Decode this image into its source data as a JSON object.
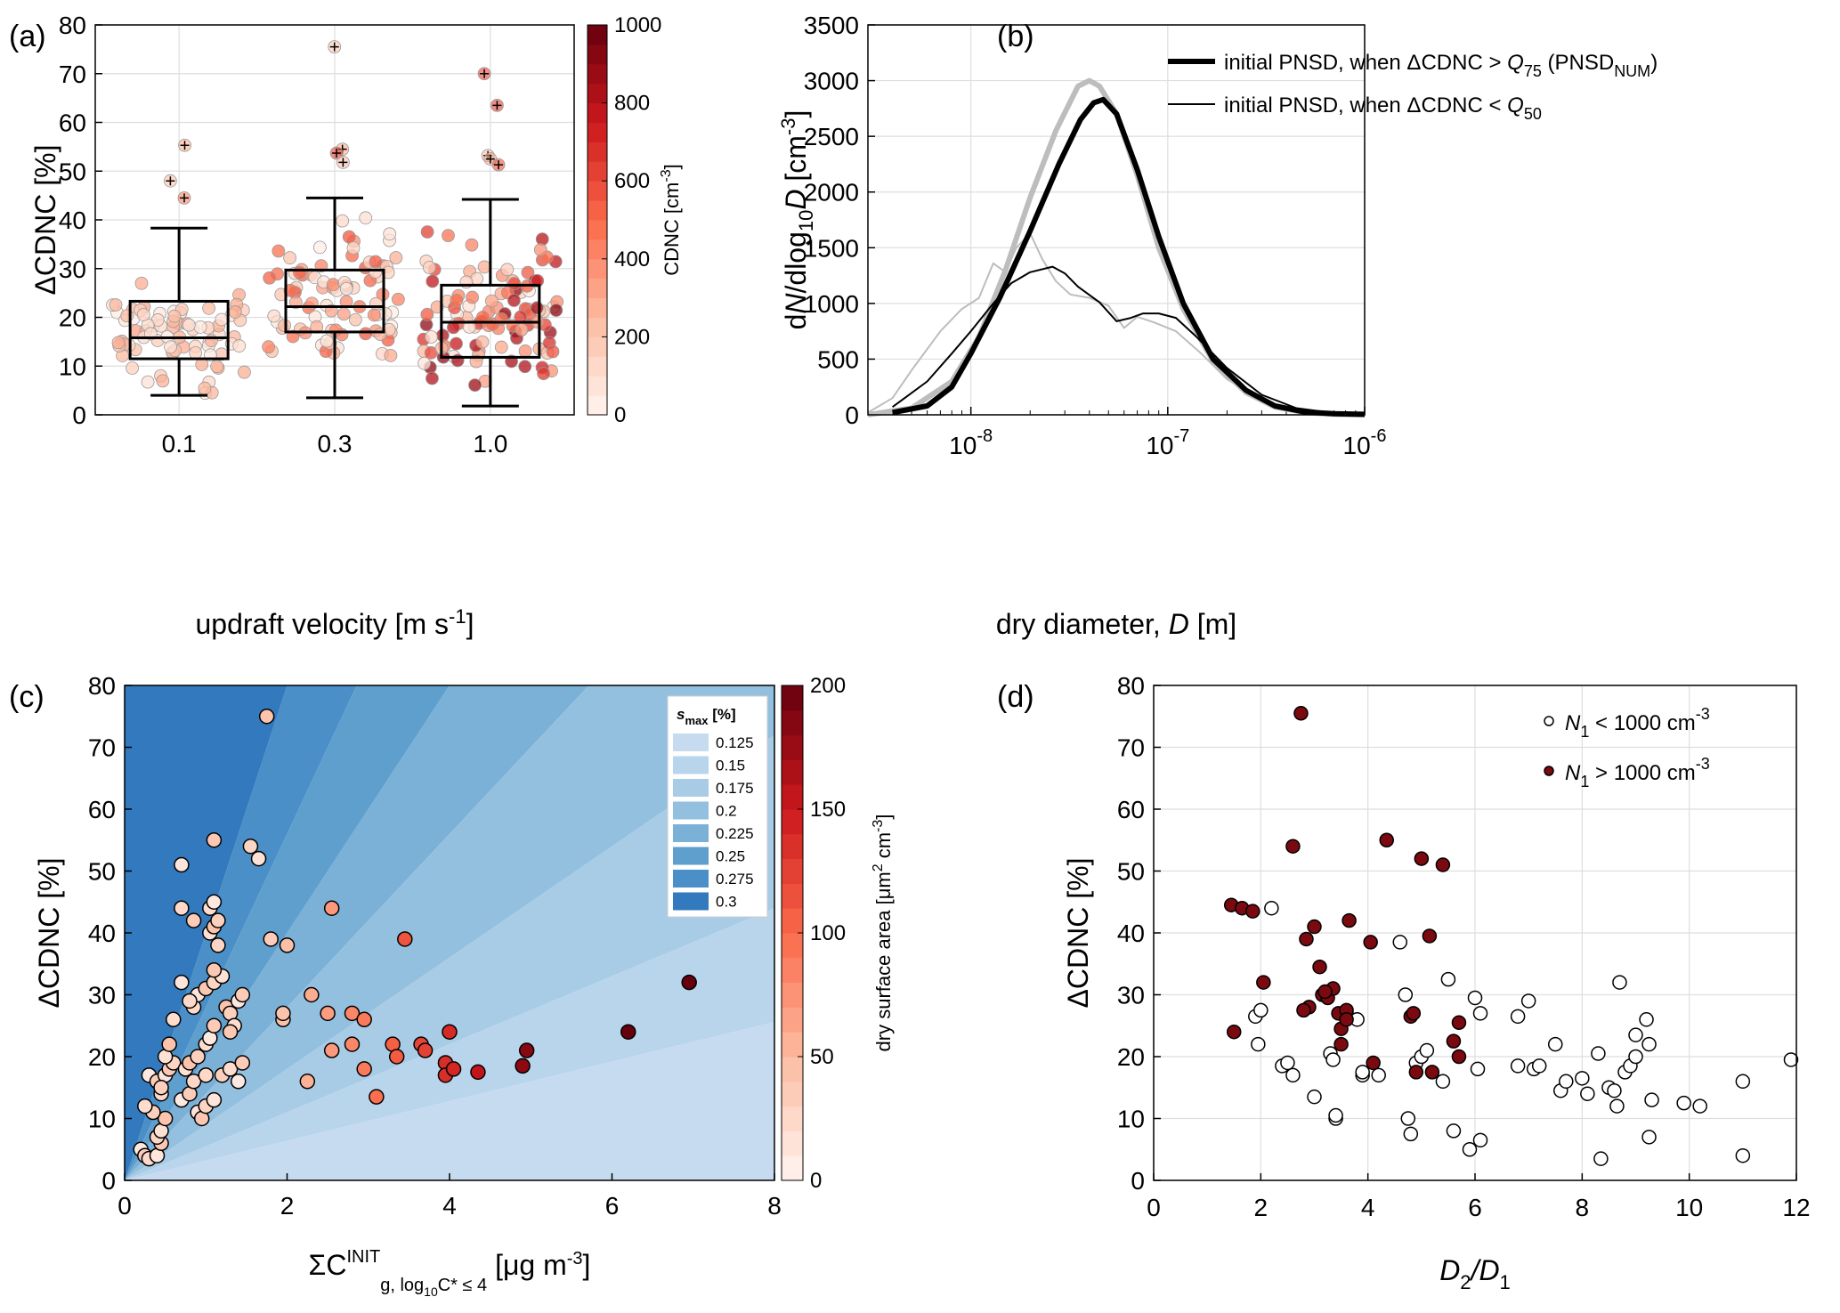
{
  "chart_data": [
    {
      "panel": "(a)",
      "type": "scatter",
      "title": "",
      "xlabel": "updraft velocity [m s",
      "xlabel_sup": "-1",
      "xlabel_tail": "]",
      "ylabel": "ΔCDNC [%]",
      "ylim": [
        0,
        80
      ],
      "yticks": [
        "0",
        "10",
        "20",
        "30",
        "40",
        "50",
        "60",
        "70",
        "80"
      ],
      "categories": [
        "0.1",
        "0.3",
        "1.0"
      ],
      "boxplots": [
        {
          "q1": 11.5,
          "median": 15.8,
          "q3": 23.3,
          "whislo": 4,
          "whishi": 38.3,
          "fliers": [
            55.3,
            48,
            44.5
          ]
        },
        {
          "q1": 17,
          "median": 22.2,
          "q3": 29.7,
          "whislo": 3.5,
          "whishi": 44.5,
          "fliers": [
            75.5,
            54.5,
            53.7,
            51.8
          ]
        },
        {
          "q1": 11.8,
          "median": 19,
          "q3": 26.6,
          "whislo": 1.8,
          "whishi": 44.2,
          "fliers": [
            70,
            63.5,
            53.2,
            52.5,
            51.3
          ]
        }
      ],
      "colorbar": {
        "label": "CDNC [cm",
        "label_sup": "-3",
        "label_tail": "]",
        "min": 0,
        "max": 1000,
        "ticks": [
          "0",
          "200",
          "400",
          "600",
          "800",
          "1000"
        ]
      }
    },
    {
      "panel": "(b)",
      "type": "line",
      "xlabel": "dry diameter, D [m]",
      "ylabel": "dN/dlog10D [cm-3]",
      "xscale": "log",
      "xlim": [
        3e-09,
        1e-06
      ],
      "ylim": [
        0,
        3500
      ],
      "yticks": [
        "0",
        "500",
        "1000",
        "1500",
        "2000",
        "2500",
        "3000",
        "3500"
      ],
      "xticks": [
        "10",
        "10",
        "10"
      ],
      "xtick_exps": [
        "-8",
        "-7",
        "-6"
      ],
      "legend": {
        "thick_a": "initial PNSD, when ΔCDNC > ",
        "thick_q": "Q",
        "thick_qsub": "75",
        "thick_b": " (PNSD",
        "thick_sub": "NUM",
        "thick_c": ")",
        "thin_a": "initial PNSD, when ΔCDNC < ",
        "thin_q": "Q",
        "thin_qsub": "50"
      },
      "series": [
        {
          "name": "initial PNSD, when ΔCDNC > Q75 (PNSD_NUM)",
          "style": "thick-black",
          "x": [
            4e-09,
            6e-09,
            8e-09,
            1e-08,
            1.4e-08,
            2e-08,
            2.8e-08,
            3.6e-08,
            4.2e-08,
            4.7e-08,
            5.5e-08,
            7e-08,
            9e-08,
            1.2e-07,
            1.7e-07,
            2.5e-07,
            3.5e-07,
            5e-07,
            7e-07,
            1e-06
          ],
          "y": [
            20,
            80,
            250,
            550,
            1050,
            1650,
            2250,
            2650,
            2800,
            2830,
            2700,
            2200,
            1600,
            1000,
            500,
            220,
            80,
            25,
            10,
            5
          ]
        },
        {
          "name": "initial PNSD, when ΔCDNC < Q50",
          "style": "thin-black",
          "x": [
            4e-09,
            6e-09,
            8e-09,
            1e-08,
            1.3e-08,
            1.6e-08,
            2e-08,
            2.6e-08,
            3e-08,
            3.5e-08,
            4.5e-08,
            5.5e-08,
            6.5e-08,
            7.5e-08,
            9e-08,
            1.1e-07,
            1.4e-07,
            2e-07,
            3e-07,
            4.5e-07,
            7e-07,
            1e-06
          ],
          "y": [
            70,
            300,
            550,
            750,
            1000,
            1180,
            1280,
            1330,
            1270,
            1150,
            1010,
            840,
            870,
            910,
            910,
            870,
            700,
            420,
            180,
            60,
            15,
            5
          ]
        },
        {
          "name": "thick grey",
          "style": "thick-grey",
          "x": [
            3e-09,
            5e-09,
            8e-09,
            1.1e-08,
            1.5e-08,
            2e-08,
            2.7e-08,
            3.5e-08,
            4e-08,
            4.5e-08,
            5.5e-08,
            7e-08,
            9e-08,
            1.2e-07,
            1.7e-07,
            2.5e-07,
            3.5e-07,
            5e-07,
            7e-07,
            1e-06
          ],
          "y": [
            0,
            60,
            300,
            700,
            1300,
            1950,
            2550,
            2950,
            3000,
            2950,
            2700,
            2150,
            1500,
            950,
            480,
            200,
            70,
            20,
            5,
            0
          ]
        },
        {
          "name": "thin grey",
          "style": "thin-grey",
          "x": [
            3e-09,
            4e-09,
            5e-09,
            7e-09,
            9e-09,
            1.1e-08,
            1.3e-08,
            1.5e-08,
            1.7e-08,
            2e-08,
            2.3e-08,
            2.7e-08,
            3.2e-08,
            4e-08,
            5e-08,
            6e-08,
            7e-08,
            8.5e-08,
            1.1e-07,
            1.5e-07,
            2e-07,
            3e-07,
            4.5e-07,
            7e-07,
            1e-06
          ],
          "y": [
            20,
            150,
            400,
            750,
            950,
            1050,
            1360,
            1280,
            1500,
            1630,
            1400,
            1200,
            1080,
            1050,
            980,
            780,
            880,
            830,
            750,
            540,
            320,
            130,
            40,
            10,
            0
          ]
        }
      ]
    },
    {
      "panel": "(c)",
      "type": "scatter",
      "xlabel": "ΣC",
      "xlabel_sup": "INIT",
      "xlabel_sub": "g, log",
      "xlabel_sub2": "10",
      "xlabel_sub3": "C* ≤ 4",
      "xlabel_tail": " [μg m",
      "xlabel_tail_sup": "-3",
      "xlabel_end": "]",
      "ylabel": "ΔCDNC [%]",
      "xlim": [
        0,
        8
      ],
      "ylim": [
        0,
        80
      ],
      "xticks": [
        "0",
        "2",
        "4",
        "6",
        "8"
      ],
      "yticks": [
        "0",
        "10",
        "20",
        "30",
        "40",
        "50",
        "60",
        "70",
        "80"
      ],
      "contour_legend": {
        "title": "s",
        "title_sub": "max",
        "title_tail": " [%]",
        "levels": [
          "0.125",
          "0.15",
          "0.175",
          "0.2",
          "0.225",
          "0.25",
          "0.275",
          "0.3"
        ],
        "colors": [
          "#c6dbef",
          "#b9d5ec",
          "#a9cce6",
          "#94c0df",
          "#7bb0d7",
          "#5f9fce",
          "#4a8fc7",
          "#3279bd"
        ]
      },
      "points": [
        [
          0.2,
          5
        ],
        [
          0.25,
          4
        ],
        [
          0.3,
          3.5
        ],
        [
          0.4,
          4
        ],
        [
          0.45,
          6
        ],
        [
          0.4,
          7
        ],
        [
          0.45,
          8
        ],
        [
          0.5,
          10
        ],
        [
          0.35,
          11
        ],
        [
          0.25,
          12
        ],
        [
          0.3,
          17
        ],
        [
          0.4,
          16
        ],
        [
          0.45,
          14
        ],
        [
          0.5,
          17
        ],
        [
          0.55,
          18
        ],
        [
          0.6,
          19
        ],
        [
          0.5,
          20
        ],
        [
          0.55,
          22
        ],
        [
          0.45,
          15
        ],
        [
          0.6,
          26
        ],
        [
          0.7,
          13
        ],
        [
          0.8,
          14
        ],
        [
          0.85,
          16
        ],
        [
          0.9,
          11
        ],
        [
          0.95,
          10
        ],
        [
          1.0,
          12
        ],
        [
          0.75,
          18
        ],
        [
          0.8,
          19
        ],
        [
          0.9,
          20
        ],
        [
          1.0,
          22
        ],
        [
          1.05,
          23
        ],
        [
          1.1,
          25
        ],
        [
          0.85,
          28
        ],
        [
          0.9,
          30
        ],
        [
          1.0,
          31
        ],
        [
          1.1,
          32
        ],
        [
          1.2,
          33
        ],
        [
          1.25,
          28
        ],
        [
          1.3,
          27
        ],
        [
          1.35,
          25
        ],
        [
          1.4,
          29
        ],
        [
          1.45,
          30
        ],
        [
          0.8,
          29
        ],
        [
          0.7,
          32
        ],
        [
          1.1,
          34
        ],
        [
          1.15,
          38
        ],
        [
          1.05,
          40
        ],
        [
          1.1,
          41
        ],
        [
          1.15,
          42
        ],
        [
          1.05,
          44
        ],
        [
          1.1,
          45
        ],
        [
          0.85,
          42
        ],
        [
          0.7,
          44
        ],
        [
          0.7,
          51
        ],
        [
          1.1,
          55
        ],
        [
          1.55,
          54
        ],
        [
          1.65,
          52
        ],
        [
          1.75,
          75
        ],
        [
          1.2,
          17
        ],
        [
          1.3,
          18
        ],
        [
          1.4,
          16
        ],
        [
          1.45,
          19
        ],
        [
          1.0,
          17
        ],
        [
          1.1,
          13
        ],
        [
          1.3,
          24
        ]
      ],
      "points_red": [
        [
          1.8,
          39
        ],
        [
          2.0,
          38
        ],
        [
          1.95,
          26
        ],
        [
          1.95,
          27
        ],
        [
          2.3,
          30
        ],
        [
          2.55,
          44
        ],
        [
          2.5,
          27
        ],
        [
          2.55,
          21
        ],
        [
          2.8,
          22
        ],
        [
          2.8,
          27
        ],
        [
          2.95,
          26
        ],
        [
          2.95,
          18
        ],
        [
          3.1,
          13.5
        ],
        [
          3.3,
          22
        ],
        [
          3.35,
          20
        ],
        [
          3.45,
          39
        ],
        [
          3.65,
          22
        ],
        [
          3.7,
          21
        ],
        [
          3.95,
          19
        ],
        [
          3.95,
          17
        ],
        [
          4.0,
          24
        ],
        [
          4.05,
          18
        ],
        [
          4.35,
          17.5
        ],
        [
          4.9,
          18.5
        ],
        [
          4.95,
          21
        ],
        [
          6.2,
          24
        ],
        [
          6.95,
          32
        ],
        [
          2.25,
          16
        ]
      ],
      "colorbar": {
        "label": "dry surface area [μm",
        "label_sup": "2",
        "label_tail": " cm",
        "label_sup2": "-3",
        "label_end": "]",
        "min": 0,
        "max": 200,
        "ticks": [
          "0",
          "50",
          "100",
          "150",
          "200"
        ]
      }
    },
    {
      "panel": "(d)",
      "type": "scatter",
      "xlabel": "D",
      "xlabel_sub": "2",
      "xlabel_mid": "/D",
      "xlabel_sub2": "1",
      "ylabel": "ΔCDNC [%]",
      "xlim": [
        0,
        12
      ],
      "ylim": [
        0,
        80
      ],
      "xticks": [
        "0",
        "2",
        "4",
        "6",
        "8",
        "10",
        "12"
      ],
      "yticks": [
        "0",
        "10",
        "20",
        "30",
        "40",
        "50",
        "60",
        "70",
        "80"
      ],
      "legend": {
        "low_a": "N",
        "low_sub": "1",
        "low_b": " < 1000 cm",
        "low_sup": "-3",
        "high_a": "N",
        "high_sub": "1",
        "high_b": " > 1000 cm",
        "high_sup": "-3"
      },
      "series": [
        {
          "name": "N1 < 1000 cm-3",
          "points": [
            [
              1.9,
              26.5
            ],
            [
              2.0,
              27.5
            ],
            [
              1.95,
              22
            ],
            [
              2.2,
              44
            ],
            [
              2.4,
              18.5
            ],
            [
              2.5,
              19
            ],
            [
              2.6,
              17
            ],
            [
              3.0,
              13.5
            ],
            [
              3.3,
              20.5
            ],
            [
              3.35,
              19.5
            ],
            [
              3.4,
              10
            ],
            [
              3.4,
              10.5
            ],
            [
              3.6,
              27
            ],
            [
              3.8,
              26
            ],
            [
              3.9,
              17
            ],
            [
              3.9,
              17.5
            ],
            [
              4.2,
              17
            ],
            [
              4.6,
              38.5
            ],
            [
              4.7,
              30
            ],
            [
              4.75,
              10
            ],
            [
              4.8,
              7.5
            ],
            [
              4.9,
              19
            ],
            [
              5.0,
              20
            ],
            [
              5.1,
              21
            ],
            [
              5.4,
              16
            ],
            [
              5.5,
              32.5
            ],
            [
              5.6,
              8
            ],
            [
              5.9,
              5
            ],
            [
              6.0,
              29.5
            ],
            [
              6.1,
              27
            ],
            [
              6.05,
              18
            ],
            [
              6.1,
              6.5
            ],
            [
              6.8,
              26.5
            ],
            [
              7.0,
              29
            ],
            [
              7.1,
              18
            ],
            [
              7.2,
              18.5
            ],
            [
              7.5,
              22
            ],
            [
              7.6,
              14.5
            ],
            [
              7.7,
              16
            ],
            [
              8.0,
              16.5
            ],
            [
              8.1,
              14
            ],
            [
              8.3,
              20.5
            ],
            [
              8.35,
              3.5
            ],
            [
              8.5,
              15
            ],
            [
              8.6,
              14.5
            ],
            [
              8.65,
              12
            ],
            [
              8.7,
              32
            ],
            [
              8.8,
              17.5
            ],
            [
              8.9,
              18.5
            ],
            [
              9.0,
              20
            ],
            [
              9.0,
              23.5
            ],
            [
              9.2,
              26
            ],
            [
              9.25,
              22
            ],
            [
              9.3,
              13
            ],
            [
              9.25,
              7
            ],
            [
              9.9,
              12.5
            ],
            [
              10.2,
              12
            ],
            [
              11.0,
              16
            ],
            [
              11.0,
              4
            ],
            [
              11.9,
              19.5
            ],
            [
              6.8,
              18.5
            ]
          ]
        },
        {
          "name": "N1 > 1000 cm-3",
          "points": [
            [
              1.45,
              44.5
            ],
            [
              1.65,
              44
            ],
            [
              1.85,
              43.5
            ],
            [
              2.05,
              32
            ],
            [
              2.6,
              54
            ],
            [
              2.75,
              75.5
            ],
            [
              1.5,
              24
            ],
            [
              2.85,
              39
            ],
            [
              2.9,
              28
            ],
            [
              2.8,
              27.5
            ],
            [
              3.0,
              41
            ],
            [
              3.1,
              34.5
            ],
            [
              3.15,
              30
            ],
            [
              3.25,
              29.5
            ],
            [
              3.35,
              31
            ],
            [
              3.5,
              24.5
            ],
            [
              3.45,
              27
            ],
            [
              3.5,
              22
            ],
            [
              3.6,
              27.5
            ],
            [
              3.65,
              42
            ],
            [
              4.05,
              38.5
            ],
            [
              4.1,
              19
            ],
            [
              4.35,
              55
            ],
            [
              4.8,
              26.5
            ],
            [
              4.85,
              27
            ],
            [
              4.9,
              17.5
            ],
            [
              5.0,
              52
            ],
            [
              5.15,
              39.5
            ],
            [
              5.2,
              17.5
            ],
            [
              5.4,
              51
            ],
            [
              5.6,
              22.5
            ],
            [
              5.7,
              20
            ],
            [
              5.7,
              25.5
            ],
            [
              3.2,
              30.5
            ],
            [
              3.6,
              26
            ]
          ]
        }
      ]
    }
  ]
}
